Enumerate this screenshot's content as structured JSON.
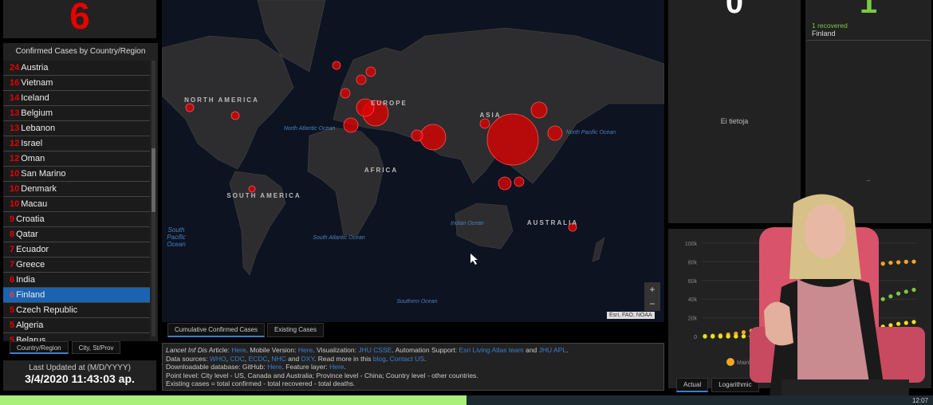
{
  "selected_count": "6",
  "list": {
    "title": "Confirmed Cases by Country/Region",
    "rows": [
      {
        "n": "24",
        "name": "Austria"
      },
      {
        "n": "16",
        "name": "Vietnam"
      },
      {
        "n": "14",
        "name": "Iceland"
      },
      {
        "n": "13",
        "name": "Belgium"
      },
      {
        "n": "13",
        "name": "Lebanon"
      },
      {
        "n": "12",
        "name": "Israel"
      },
      {
        "n": "12",
        "name": "Oman"
      },
      {
        "n": "10",
        "name": "San Marino"
      },
      {
        "n": "10",
        "name": "Denmark"
      },
      {
        "n": "10",
        "name": "Macau"
      },
      {
        "n": "9",
        "name": "Croatia"
      },
      {
        "n": "8",
        "name": "Qatar"
      },
      {
        "n": "7",
        "name": "Ecuador"
      },
      {
        "n": "7",
        "name": "Greece"
      },
      {
        "n": "6",
        "name": "India"
      },
      {
        "n": "6",
        "name": "Finland",
        "selected": true
      },
      {
        "n": "5",
        "name": "Czech Republic"
      },
      {
        "n": "5",
        "name": "Algeria"
      },
      {
        "n": "5",
        "name": "Belarus"
      }
    ],
    "tabs": [
      "Country/Region",
      "City, St/Prov"
    ]
  },
  "updated": {
    "label": "Last Updated at (M/D/YYYY)",
    "value": "3/4/2020 11:43:03 ap."
  },
  "map": {
    "labels": {
      "na": "NORTH AMERICA",
      "sa": "SOUTH AMERICA",
      "eu": "EUROPE",
      "af": "AFRICA",
      "as": "ASIA",
      "au": "AUSTRALIA",
      "nao": "North Atlantic Ocean",
      "npo": "North Pacific Ocean",
      "spo": "South Pacific Ocean",
      "sao": "South Atlantic Ocean",
      "io": "Indian Ocean",
      "so": "Southern Ocean"
    },
    "attribution": "Esri, FAO, NOAA",
    "zoom_in": "+",
    "zoom_out": "−",
    "tabs": [
      "Cumulative Confirmed Cases",
      "Existing Cases"
    ],
    "marker_color": "#e60000"
  },
  "info": {
    "l1": {
      "a": "Lancet Inf Dis",
      "b": " Article: ",
      "c": "Here",
      "d": ". Mobile Version: ",
      "e": "Here",
      "f": ". Visualization: ",
      "g": "JHU CSSE",
      "h": ". Automation Support: ",
      "i": "Esri Living Atlas team",
      "j": " and ",
      "k": "JHU APL",
      "m": "."
    },
    "l2": {
      "a": "Data sources: ",
      "b": "WHO",
      "c": ", ",
      "d": "CDC",
      "e": ", ",
      "f": "ECDC",
      "g": ", ",
      "h": "NHC",
      "i": " and ",
      "j": "DXY",
      "k": ". Read more in this ",
      "m": "blog",
      "n": ". ",
      "o": "Contact US",
      "p": "."
    },
    "l3": {
      "a": "Downloadable database: GitHub: ",
      "b": "Here",
      "c": ". Feature layer: ",
      "d": "Here",
      "e": "."
    },
    "l4": "Point level: City level - US, Canada and Australia; Province level - China; Country level - other countries.",
    "l5": "Existing cases = total confirmed - total recovered - total deaths."
  },
  "deaths_panel": {
    "value": "0",
    "empty": "Ei tietoja"
  },
  "recovered_panel": {
    "value": "1",
    "line": "1 recovered",
    "country": "Finland",
    "dash": "–",
    "color": "#7ac943"
  },
  "chart_data": {
    "type": "scatter",
    "ylim": [
      0,
      100000
    ],
    "yticks": [
      "100k",
      "80k",
      "60k",
      "40k",
      "20k",
      "0"
    ],
    "legend": "Mainlan",
    "tabs": [
      "Actual",
      "Logarithmic"
    ],
    "series": [
      {
        "color": "#f5a623",
        "values": [
          500,
          800,
          1200,
          2000,
          3000,
          4500,
          6000,
          8000,
          10000,
          12000,
          15000,
          20000,
          28000,
          37000,
          44000,
          52000,
          60000,
          66000,
          70000,
          74000,
          75500,
          76500,
          77500,
          78000,
          79000,
          79500,
          80000,
          80200
        ]
      },
      {
        "color": "#7ac943",
        "values": [
          0,
          0,
          0,
          50,
          100,
          200,
          300,
          500,
          800,
          1200,
          1800,
          2500,
          3500,
          5000,
          7000,
          10000,
          13000,
          16000,
          20000,
          24000,
          28000,
          32000,
          36000,
          40000,
          43000,
          46000,
          48000,
          50000
        ]
      },
      {
        "color": "#f0e020",
        "values": [
          0,
          0,
          0,
          0,
          0,
          50,
          100,
          150,
          200,
          300,
          400,
          500,
          700,
          900,
          1200,
          1500,
          2000,
          2500,
          3500,
          4500,
          6000,
          7500,
          9000,
          10500,
          12000,
          13500,
          14500,
          15500
        ]
      }
    ]
  },
  "video": {
    "progress_percent": 50,
    "time": "12:07"
  }
}
